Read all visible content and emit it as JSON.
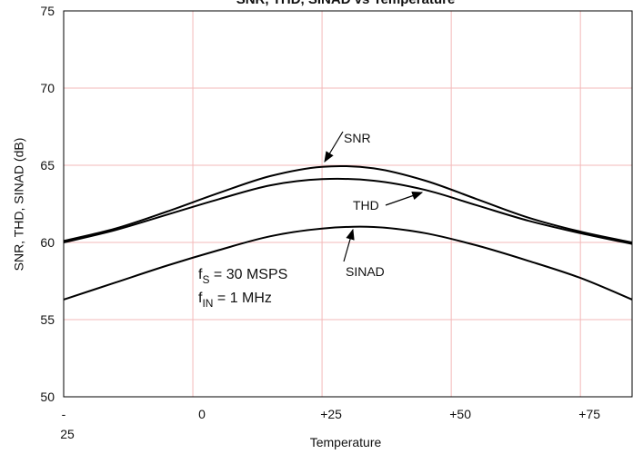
{
  "chart_data": {
    "type": "line",
    "title": "SNR, THD, SINAD vs Temperature",
    "xlabel": "Temperature",
    "ylabel": "SNR, THD, SINAD (dB)",
    "x": [
      -25,
      -15,
      -5,
      5,
      15,
      25,
      35,
      45,
      55,
      65,
      75,
      85
    ],
    "series": [
      {
        "name": "SNR",
        "color": "#000000",
        "values": [
          60.1,
          60.9,
          62.0,
          63.2,
          64.3,
          64.9,
          64.8,
          64.0,
          62.8,
          61.6,
          60.7,
          60.0
        ]
      },
      {
        "name": "THD",
        "color": "#000000",
        "values": [
          60.0,
          60.8,
          61.8,
          62.8,
          63.7,
          64.1,
          64.0,
          63.4,
          62.4,
          61.4,
          60.6,
          59.9
        ]
      },
      {
        "name": "SINAD",
        "color": "#000000",
        "values": [
          56.3,
          57.4,
          58.5,
          59.5,
          60.4,
          60.9,
          61.0,
          60.6,
          59.8,
          58.8,
          57.7,
          56.3
        ]
      }
    ],
    "xlim": [
      -25,
      85
    ],
    "xticks": [
      {
        "value": -25,
        "label": "- 25"
      },
      0,
      {
        "value": 25,
        "label": "+25"
      },
      {
        "value": 50,
        "label": "+50"
      },
      {
        "value": 75,
        "label": "+75"
      }
    ],
    "ylim": [
      50,
      75
    ],
    "yticks": [
      50,
      55,
      60,
      65,
      70,
      75
    ],
    "grid": true,
    "conditions": [
      {
        "text": "f",
        "sub": "S",
        "rest": " = 30 MSPS"
      },
      {
        "text": "f",
        "sub": "IN",
        "rest": " = 1 MHz"
      }
    ]
  }
}
